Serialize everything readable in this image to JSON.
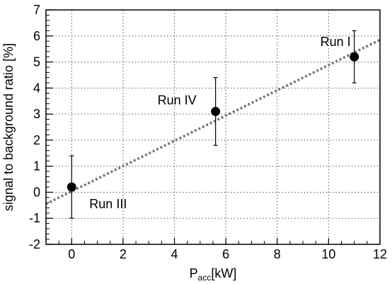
{
  "chart_data": {
    "type": "scatter",
    "xlabel_main": "P",
    "xlabel_sub": "acc",
    "xlabel_unit": "[kW]",
    "ylabel": "signal to background ratio [%]",
    "xlim": [
      -1,
      12
    ],
    "ylim": [
      -2,
      7
    ],
    "x_ticks": [
      "0",
      "2",
      "4",
      "6",
      "8",
      "10",
      "12"
    ],
    "y_ticks": [
      "-2",
      "-1",
      "0",
      "1",
      "2",
      "3",
      "4",
      "5",
      "6",
      "7"
    ],
    "grid": true,
    "series": [
      {
        "points": [
          {
            "label": "Run III",
            "x": 0.0,
            "y": 0.2,
            "err_low": 1.2,
            "err_high": 1.2
          },
          {
            "label": "Run IV",
            "x": 5.6,
            "y": 3.1,
            "err_low": 1.3,
            "err_high": 1.3
          },
          {
            "label": "Run I",
            "x": 11.0,
            "y": 5.2,
            "err_low": 1.0,
            "err_high": 1.0
          }
        ]
      }
    ],
    "fit_line": {
      "x": [
        -1,
        12
      ],
      "y": [
        -0.45,
        5.85
      ],
      "style": "dotted",
      "color": "#777777"
    }
  }
}
